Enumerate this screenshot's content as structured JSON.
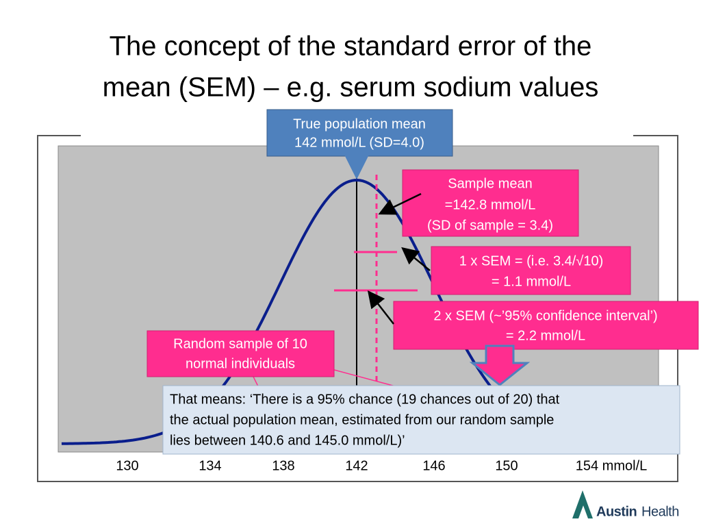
{
  "title": [
    "The concept of the standard error of the",
    "mean (SEM) – e.g. serum sodium values"
  ],
  "callouts": {
    "population_mean": [
      "True population mean",
      "142 mmol/L (SD=4.0)"
    ],
    "sample_mean": [
      "Sample mean",
      "=142.8 mmol/L",
      "(SD of sample = 3.4)"
    ],
    "one_sem": [
      "1 x SEM = (i.e. 3.4/√10)",
      "= 1.1 mmol/L"
    ],
    "two_sem": [
      "2 x SEM (~’95% confidence interval’)",
      "= 2.2 mmol/L"
    ],
    "random_sample": [
      "Random sample of 10",
      "normal individuals"
    ],
    "conclusion": [
      "That means: ‘There is a 95% chance (19 chances out of 20) that",
      "the actual population mean, estimated from our random sample",
      "lies between 140.6 and 145.0 mmol/L)’"
    ]
  },
  "x_axis": {
    "tick_labels": [
      "130",
      "134",
      "138",
      "142",
      "146",
      "150",
      "154 mmol/L"
    ]
  },
  "logo": {
    "name": "Austin",
    "suffix": "Health"
  }
}
